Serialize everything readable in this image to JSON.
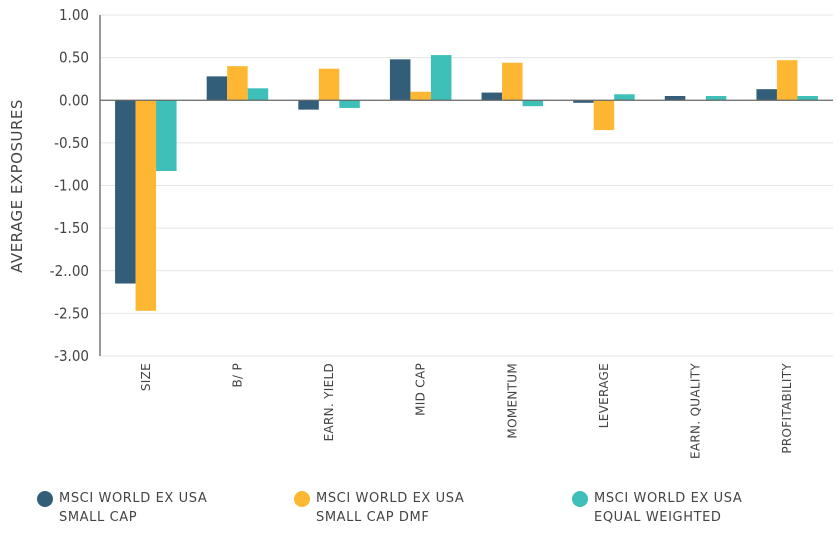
{
  "chart_data": {
    "type": "bar",
    "title": "",
    "xlabel": "",
    "ylabel": "AVERAGE EXPOSURES",
    "ylim": [
      -3.0,
      1.0
    ],
    "yticks": [
      1.0,
      0.5,
      0.0,
      -0.5,
      -1.0,
      -1.5,
      -2.0,
      -2.5,
      -3.0
    ],
    "ytick_labels": [
      "1.00",
      "0.50",
      "0.00",
      "-0.50",
      "-1.00",
      "-1.50",
      "-2..00",
      "-2.50",
      "-3.00"
    ],
    "grid": true,
    "legend_position": "bottom",
    "categories": [
      "SIZE",
      "B/ P",
      "EARN. YIELD",
      "MID CAP",
      "MOMENTUM",
      "LEVERAGE",
      "EARN. QUALITY",
      "PROFITABILITY"
    ],
    "series": [
      {
        "name": "MSCI WORLD EX USA SMALL CAP",
        "legend_lines": [
          "MSCI WORLD EX USA",
          "SMALL CAP"
        ],
        "color": "#335e7a",
        "values": [
          -2.15,
          0.28,
          -0.11,
          0.48,
          0.09,
          -0.03,
          0.05,
          0.13
        ]
      },
      {
        "name": "MSCI WORLD EX USA SMALL CAP DMF",
        "legend_lines": [
          "MSCI WORLD EX USA",
          "SMALL CAP DMF"
        ],
        "color": "#fdb733",
        "values": [
          -2.47,
          0.4,
          0.37,
          0.1,
          0.44,
          -0.35,
          0.0,
          0.47
        ]
      },
      {
        "name": "MSCI WORLD EX USA EQUAL WEIGHTED",
        "legend_lines": [
          "MSCI WORLD EX USA",
          "EQUAL WEIGHTED"
        ],
        "color": "#3ebfb7",
        "values": [
          -0.83,
          0.14,
          -0.09,
          0.53,
          -0.07,
          0.07,
          0.05,
          0.05
        ]
      }
    ]
  }
}
